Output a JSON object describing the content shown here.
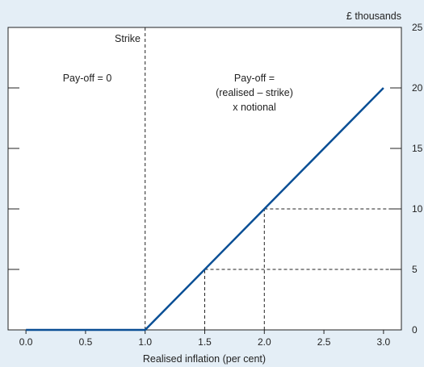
{
  "chart_data": {
    "type": "line",
    "title": "",
    "xlabel": "Realised inflation (per cent)",
    "ylabel": "£ thousands",
    "xlim": [
      -0.15,
      3.15
    ],
    "ylim": [
      0,
      25
    ],
    "x_ticks": [
      "0.0",
      "0.5",
      "1.0",
      "1.5",
      "2.0",
      "2.5",
      "3.0"
    ],
    "y_ticks": [
      "0",
      "5",
      "10",
      "15",
      "20",
      "25"
    ],
    "y_axis_side": "right",
    "grid": false,
    "series": [
      {
        "x": [
          0.0,
          1.0,
          3.0
        ],
        "y": [
          0,
          0,
          20
        ],
        "color": "#0a4f95"
      }
    ],
    "strike": {
      "x": 1.0,
      "label": "Strike"
    },
    "guides": [
      {
        "x": 1.5,
        "y": 5
      },
      {
        "x": 2.0,
        "y": 10
      }
    ],
    "annotations": {
      "left": [
        "Pay-off = 0"
      ],
      "right": [
        "Pay-off =",
        "(realised – strike)",
        "x notional"
      ]
    }
  }
}
